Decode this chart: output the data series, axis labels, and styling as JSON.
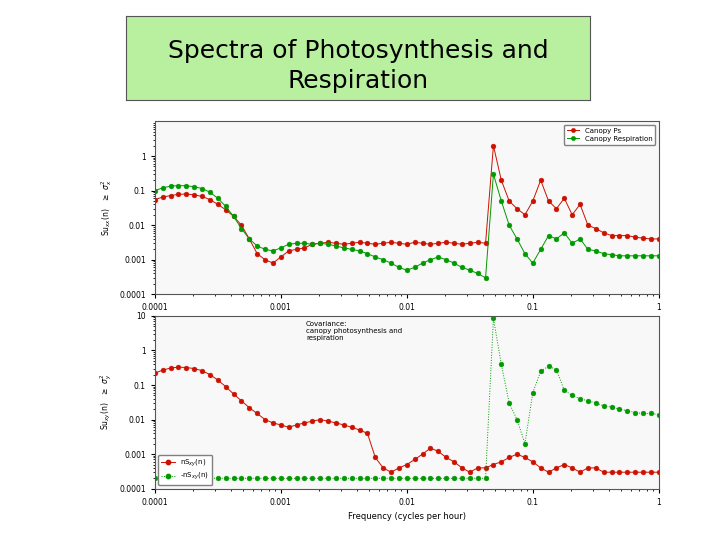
{
  "title_line1": "Spectra of Photosynthesis and",
  "title_line2": "Respiration",
  "title_bg": "#b8f0a0",
  "bg_color": "#ffffff",
  "xlabel": "Frequency (cycles per hour)",
  "top_legend": [
    "Canopy Ps",
    "Canopy Respiration"
  ],
  "bottom_annotation": "Covariance:\ncanopy photosynthesis and\nrespiration",
  "red_color": "#cc1100",
  "green_color": "#009900",
  "gray_line": "#888888",
  "title_fontsize": 18,
  "axis_fontsize": 6,
  "legend_fontsize": 5,
  "marker_size": 3.5
}
